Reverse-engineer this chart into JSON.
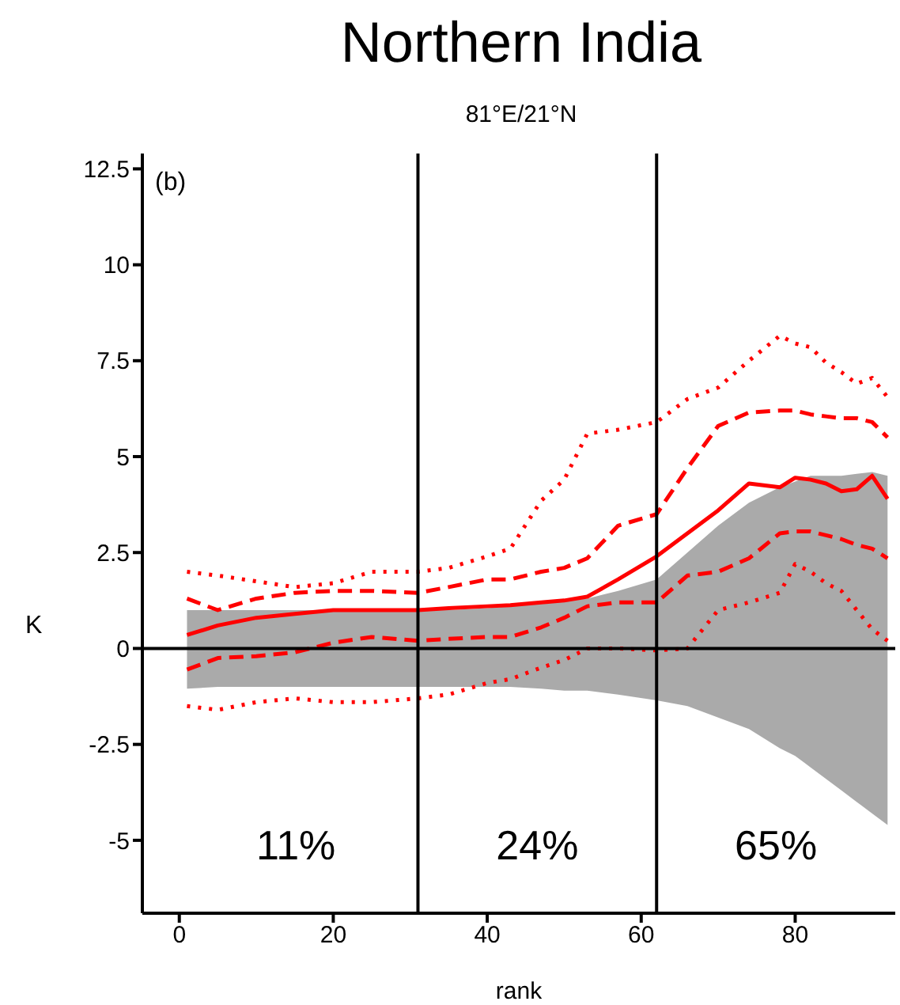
{
  "chart_data": {
    "type": "line",
    "title": "Northern India",
    "subtitle": "81°E/21°N",
    "xlabel": "rank",
    "ylabel": "K",
    "x": [
      1,
      5,
      10,
      15,
      20,
      25,
      31,
      35,
      40,
      43,
      47,
      50,
      53,
      57,
      62,
      66,
      70,
      74,
      78,
      80,
      82,
      84,
      86,
      88,
      90,
      92
    ],
    "series": [
      {
        "color": "#ff0000",
        "line_style": "solid",
        "values": [
          0.35,
          0.6,
          0.8,
          0.9,
          1.0,
          1.0,
          1.0,
          1.05,
          1.1,
          1.13,
          1.2,
          1.25,
          1.35,
          1.8,
          2.4,
          3.0,
          3.6,
          4.3,
          4.2,
          4.45,
          4.4,
          4.3,
          4.1,
          4.15,
          4.5,
          3.9
        ],
        "lower": [
          -1.05,
          -1.0,
          -1.0,
          -1.0,
          -1.0,
          -1.0,
          -1.0,
          -1.0,
          -1.0,
          -1.0,
          -1.05,
          -1.1,
          -1.1,
          -1.2,
          -1.35,
          -1.5,
          -1.8,
          -2.1,
          -2.6,
          -2.8,
          -3.1,
          -3.4,
          -3.7,
          -4.0,
          -4.3,
          -4.6
        ],
        "upper": [
          1.0,
          1.0,
          1.0,
          1.0,
          1.0,
          1.0,
          1.0,
          1.0,
          1.05,
          1.1,
          1.2,
          1.25,
          1.3,
          1.5,
          1.8,
          2.5,
          3.2,
          3.8,
          4.2,
          4.35,
          4.5,
          4.5,
          4.5,
          4.55,
          4.6,
          4.5
        ]
      },
      {
        "color": "#ff0000",
        "line_style": "dashed",
        "values": [
          1.3,
          1.0,
          1.3,
          1.45,
          1.5,
          1.5,
          1.45,
          1.6,
          1.8,
          1.8,
          2.0,
          2.1,
          2.35,
          3.2,
          3.5,
          4.7,
          5.8,
          6.15,
          6.2,
          6.2,
          6.1,
          6.05,
          6.0,
          6.0,
          5.9,
          5.5
        ]
      },
      {
        "color": "#ff0000",
        "line_style": "dashed",
        "values": [
          -0.55,
          -0.25,
          -0.2,
          -0.1,
          0.15,
          0.3,
          0.2,
          0.25,
          0.3,
          0.3,
          0.55,
          0.8,
          1.1,
          1.2,
          1.2,
          1.9,
          2.0,
          2.35,
          3.0,
          3.05,
          3.05,
          2.95,
          2.85,
          2.7,
          2.6,
          2.35
        ]
      },
      {
        "color": "#ff0000",
        "line_style": "dotted",
        "values": [
          2.0,
          1.9,
          1.75,
          1.6,
          1.7,
          2.0,
          2.0,
          2.1,
          2.4,
          2.6,
          3.85,
          4.4,
          5.6,
          5.7,
          5.9,
          6.5,
          6.8,
          7.5,
          8.15,
          7.95,
          7.85,
          7.45,
          7.2,
          6.9,
          7.05,
          6.55
        ]
      },
      {
        "color": "#ff0000",
        "line_style": "dotted",
        "values": [
          -1.5,
          -1.6,
          -1.4,
          -1.3,
          -1.4,
          -1.4,
          -1.3,
          -1.2,
          -0.9,
          -0.8,
          -0.5,
          -0.3,
          0.0,
          0.0,
          -0.05,
          0.0,
          1.0,
          1.2,
          1.45,
          2.2,
          2.0,
          1.7,
          1.5,
          1.0,
          0.5,
          0.2
        ]
      }
    ],
    "xlim": [
      -4.8,
      93
    ],
    "xticks": [
      0,
      20,
      40,
      60,
      80
    ],
    "ylim": [
      -6.9,
      12.9
    ],
    "yticks": [
      -5,
      -2.5,
      0,
      2.5,
      5,
      7.5,
      10,
      12.5
    ],
    "grid": false,
    "legend": false,
    "ref_lines": [
      {
        "axis": "y",
        "value": 0,
        "color": "#000000"
      },
      {
        "axis": "x",
        "value": 31,
        "color": "#000000"
      },
      {
        "axis": "x",
        "value": 62,
        "color": "#000000"
      }
    ],
    "annotations": [
      "(b)",
      "11%",
      "24%",
      "65%"
    ]
  }
}
